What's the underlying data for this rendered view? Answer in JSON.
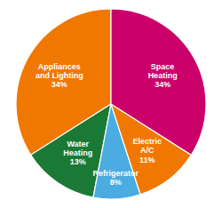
{
  "chart_data": {
    "type": "pie",
    "categories": [
      "Appliances\nand Lighting",
      "Water\nHeating",
      "Refrigerator",
      "Electric\nA/C",
      "Space\nHeating"
    ],
    "values": [
      34,
      13,
      8,
      11,
      34
    ],
    "value_labels": [
      "34%",
      "13%",
      "8%",
      "11%",
      "34%"
    ],
    "colors": [
      "#F07800",
      "#1A7A35",
      "#4AACE0",
      "#F07800",
      "#CC006A"
    ]
  }
}
